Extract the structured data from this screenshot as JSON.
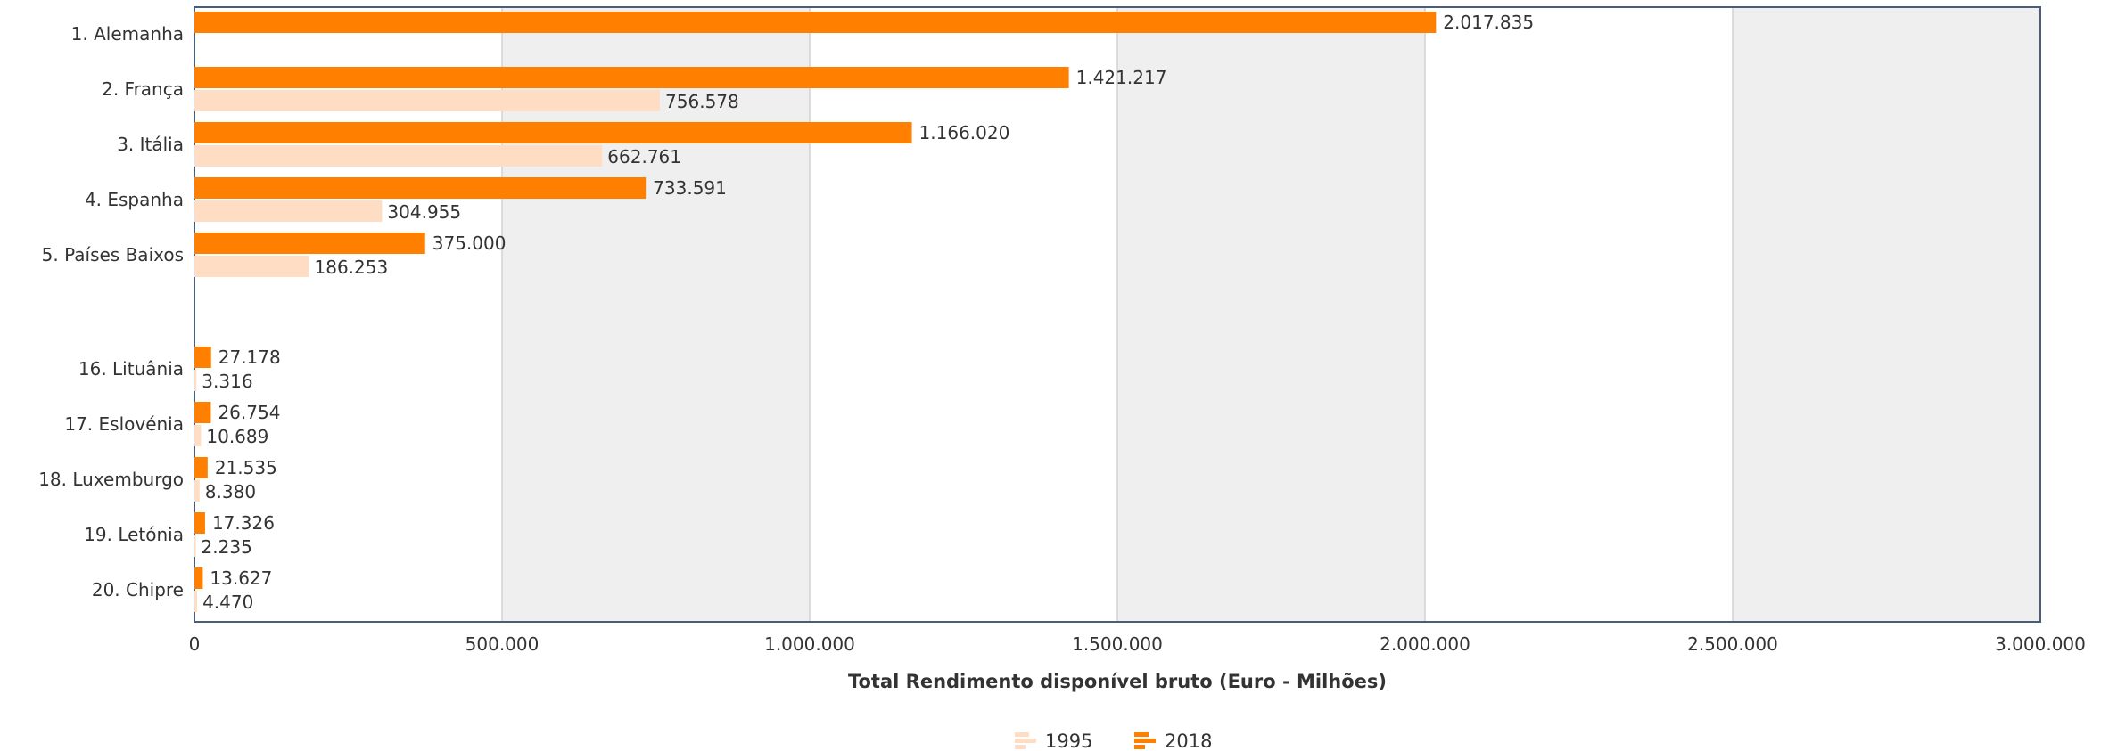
{
  "chart_data": {
    "type": "bar",
    "orientation": "horizontal",
    "categories": [
      "1. Alemanha",
      "2. França",
      "3. Itália",
      "4. Espanha",
      "5. Países Baixos",
      "16. Lituânia",
      "17. Eslovénia",
      "18. Luxemburgo",
      "19. Letónia",
      "20. Chipre"
    ],
    "series": [
      {
        "name": "2018",
        "color": "#FF8000",
        "values": [
          2017835,
          1421217,
          1166020,
          733591,
          375000,
          27178,
          26754,
          21535,
          17326,
          13627
        ],
        "labels": [
          "2.017.835",
          "1.421.217",
          "1.166.020",
          "733.591",
          "375.000",
          "27.178",
          "26.754",
          "21.535",
          "17.326",
          "13.627"
        ]
      },
      {
        "name": "1995",
        "color": "#FFDDC4",
        "values": [
          null,
          756578,
          662761,
          304955,
          186253,
          3316,
          10689,
          8380,
          2235,
          4470
        ],
        "labels": [
          "",
          "756.578",
          "662.761",
          "304.955",
          "186.253",
          "3.316",
          "10.689",
          "8.380",
          "2.235",
          "4.470"
        ]
      }
    ],
    "xlabel": "Total Rendimento disponível bruto (Euro - Milhões)",
    "xlim": [
      0,
      3000000
    ],
    "xticks": [
      "0",
      "500.000",
      "1.000.000",
      "1.500.000",
      "2.000.000",
      "2.500.000",
      "3.000.000"
    ],
    "grid": true,
    "alternating_bands": true,
    "legend_position": "bottom-center",
    "legend": [
      "1995",
      "2018"
    ]
  }
}
